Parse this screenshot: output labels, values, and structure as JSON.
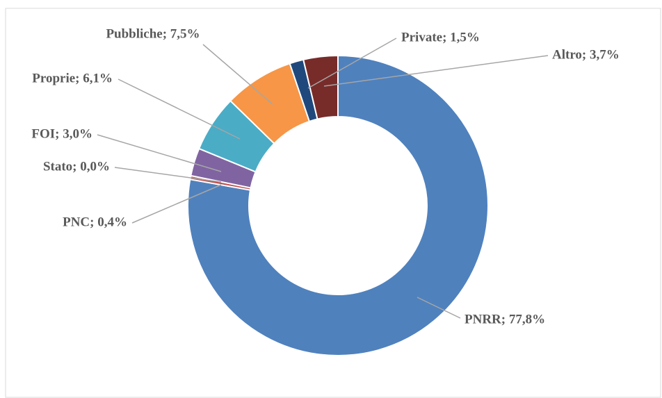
{
  "chart_data": {
    "type": "pie",
    "values": [
      77.8,
      0.4,
      0.0,
      3.0,
      6.1,
      7.5,
      1.5,
      3.7
    ],
    "value_labels": [
      "PNRR; 77,8%",
      "PNC; 0,4%",
      "Stato; 0,0%",
      "FOI; 3,0%",
      "Proprie; 6,1%",
      "Pubbliche; 7,5%",
      "Private; 1,5%",
      "Altro; 3,7%"
    ],
    "colors": [
      "#4f81bd",
      "#c0504d",
      "#9bbb59",
      "#8064a2",
      "#4bacc6",
      "#f79646",
      "#1f497d",
      "#772c2a"
    ]
  }
}
